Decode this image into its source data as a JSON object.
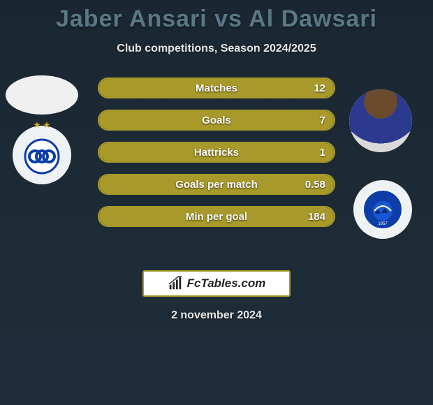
{
  "title": "Jaber Ansari vs Al Dawsari",
  "subtitle": "Club competitions, Season 2024/2025",
  "date": "2 november 2024",
  "brand": "FcTables.com",
  "colors": {
    "bar_border": "#a89a2a",
    "bar_fill": "#a89a2a",
    "title": "#5a7785"
  },
  "stats": [
    {
      "label": "Matches",
      "right_value": "12",
      "fill_pct": 100
    },
    {
      "label": "Goals",
      "right_value": "7",
      "fill_pct": 100
    },
    {
      "label": "Hattricks",
      "right_value": "1",
      "fill_pct": 100
    },
    {
      "label": "Goals per match",
      "right_value": "0.58",
      "fill_pct": 100
    },
    {
      "label": "Min per goal",
      "right_value": "184",
      "fill_pct": 100
    }
  ]
}
